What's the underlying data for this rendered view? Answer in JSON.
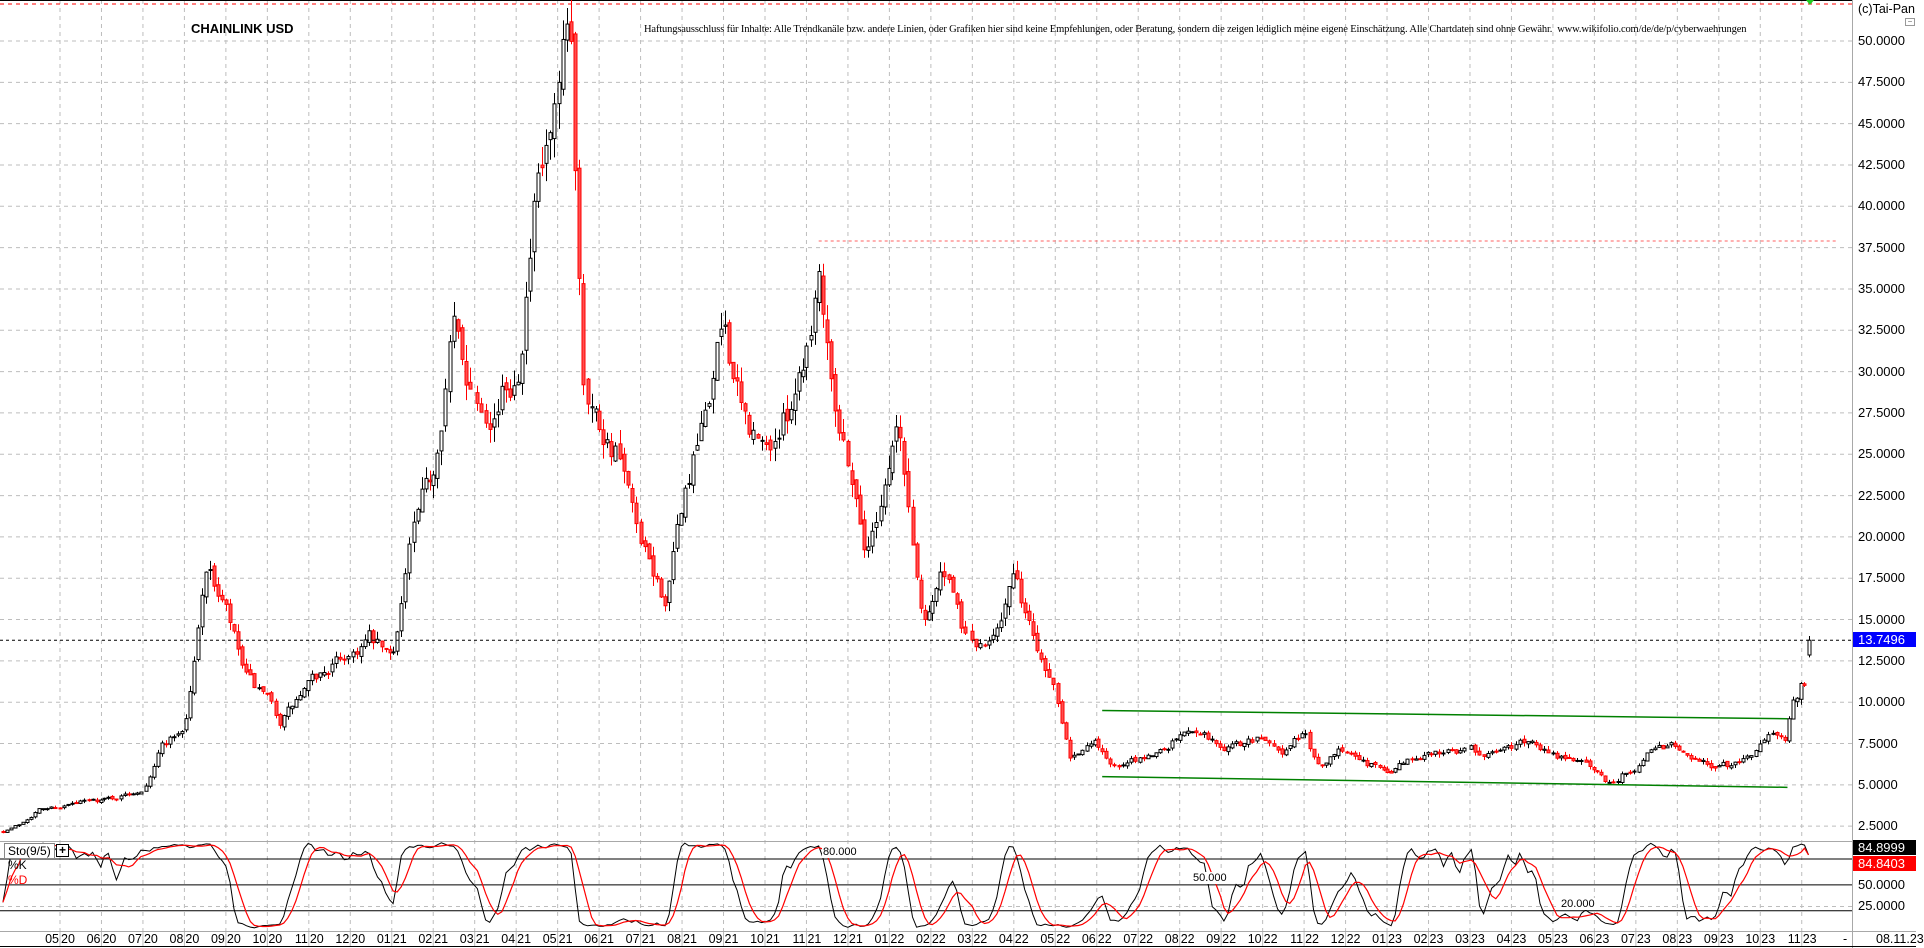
{
  "header": {
    "title": "CHAINLINK USD",
    "disclaimer": "Haftungsausschluss für Inhalte: Alle Trendkanäle bzw. andere Linien, oder Grafiken hier sind keine Empfehlungen, oder Beratung, sondern die zeigen lediglich meine eigene Einschätzung. Alle Chartdaten sind ohne Gewähr.  www.wikifolio.com/de/de/p/cyberwaehrungen",
    "copyright": "(c)Tai-Pan",
    "minimize_icon": "minus-box-icon"
  },
  "footer": {
    "date": "08.11.23",
    "separator": "-"
  },
  "colors": {
    "up": "#000000",
    "down": "#ff0000",
    "trendline": "#008000",
    "resistance": "#ff6060",
    "last_price_bg": "#0000ff",
    "k_line": "#000000",
    "d_line": "#ff0000"
  },
  "chart_data": [
    {
      "type": "candlestick",
      "title": "CHAINLINK USD",
      "ylim": [
        0.9,
        53.4
      ],
      "y_ticks": [
        "2.5000",
        "5.0000",
        "7.5000",
        "10.0000",
        "12.5000",
        "15.0000",
        "17.5000",
        "20.0000",
        "22.5000",
        "25.0000",
        "27.5000",
        "30.0000",
        "32.5000",
        "35.0000",
        "37.5000",
        "40.0000",
        "42.5000",
        "45.0000",
        "47.5000",
        "50.0000"
      ],
      "y_tick_values": [
        2.5,
        5,
        7.5,
        10,
        12.5,
        15,
        17.5,
        20,
        22.5,
        25,
        27.5,
        30,
        32.5,
        35,
        37.5,
        40,
        42.5,
        45,
        47.5,
        50
      ],
      "x_ticks": [
        [
          "05",
          "20"
        ],
        [
          "06",
          "20"
        ],
        [
          "07",
          "20"
        ],
        [
          "08",
          "20"
        ],
        [
          "09",
          "20"
        ],
        [
          "10",
          "20"
        ],
        [
          "11",
          "20"
        ],
        [
          "12",
          "20"
        ],
        [
          "01",
          "21"
        ],
        [
          "02",
          "21"
        ],
        [
          "03",
          "21"
        ],
        [
          "04",
          "21"
        ],
        [
          "05",
          "21"
        ],
        [
          "06",
          "21"
        ],
        [
          "07",
          "21"
        ],
        [
          "08",
          "21"
        ],
        [
          "09",
          "21"
        ],
        [
          "10",
          "21"
        ],
        [
          "11",
          "21"
        ],
        [
          "12",
          "21"
        ],
        [
          "01",
          "22"
        ],
        [
          "02",
          "22"
        ],
        [
          "03",
          "22"
        ],
        [
          "04",
          "22"
        ],
        [
          "05",
          "22"
        ],
        [
          "06",
          "22"
        ],
        [
          "07",
          "22"
        ],
        [
          "08",
          "22"
        ],
        [
          "09",
          "22"
        ],
        [
          "10",
          "22"
        ],
        [
          "11",
          "22"
        ],
        [
          "12",
          "22"
        ],
        [
          "01",
          "23"
        ],
        [
          "02",
          "23"
        ],
        [
          "03",
          "23"
        ],
        [
          "04",
          "23"
        ],
        [
          "05",
          "23"
        ],
        [
          "06",
          "23"
        ],
        [
          "07",
          "23"
        ],
        [
          "08",
          "23"
        ],
        [
          "09",
          "23"
        ],
        [
          "10",
          "23"
        ],
        [
          "11",
          "23"
        ]
      ],
      "grid": true,
      "last_price": "13.7496",
      "last_price_value": 13.7496,
      "closes": [
        [
          "2020-03-20",
          2.2
        ],
        [
          "2020-04-01",
          2.6
        ],
        [
          "2020-04-15",
          3.5
        ],
        [
          "2020-05-01",
          3.7
        ],
        [
          "2020-05-15",
          3.9
        ],
        [
          "2020-06-01",
          4.1
        ],
        [
          "2020-06-15",
          4.3
        ],
        [
          "2020-07-01",
          4.8
        ],
        [
          "2020-07-15",
          7.5
        ],
        [
          "2020-08-01",
          8.5
        ],
        [
          "2020-08-10",
          13.5
        ],
        [
          "2020-08-16",
          18.5
        ],
        [
          "2020-09-01",
          15.5
        ],
        [
          "2020-09-15",
          11.5
        ],
        [
          "2020-10-01",
          10
        ],
        [
          "2020-10-10",
          8.8
        ],
        [
          "2020-11-01",
          11
        ],
        [
          "2020-11-15",
          12
        ],
        [
          "2020-12-01",
          13
        ],
        [
          "2020-12-15",
          13.8
        ],
        [
          "2021-01-01",
          12.5
        ],
        [
          "2021-01-15",
          20
        ],
        [
          "2021-02-01",
          24
        ],
        [
          "2021-02-15",
          33
        ],
        [
          "2021-03-01",
          29
        ],
        [
          "2021-03-15",
          28
        ],
        [
          "2021-04-01",
          30
        ],
        [
          "2021-04-15",
          40
        ],
        [
          "2021-05-01",
          45
        ],
        [
          "2021-05-10",
          50.5
        ],
        [
          "2021-05-20",
          30
        ],
        [
          "2021-06-01",
          27
        ],
        [
          "2021-06-15",
          25
        ],
        [
          "2021-07-01",
          19
        ],
        [
          "2021-07-20",
          16
        ],
        [
          "2021-08-01",
          22
        ],
        [
          "2021-08-15",
          26
        ],
        [
          "2021-09-01",
          33
        ],
        [
          "2021-09-15",
          27
        ],
        [
          "2021-10-01",
          25
        ],
        [
          "2021-10-15",
          27
        ],
        [
          "2021-11-01",
          32
        ],
        [
          "2021-11-10",
          36.5
        ],
        [
          "2021-11-25",
          27
        ],
        [
          "2021-12-01",
          25
        ],
        [
          "2021-12-15",
          19
        ],
        [
          "2022-01-01",
          25
        ],
        [
          "2022-01-07",
          27
        ],
        [
          "2022-01-25",
          15
        ],
        [
          "2022-02-10",
          18
        ],
        [
          "2022-02-25",
          14
        ],
        [
          "2022-03-10",
          13
        ],
        [
          "2022-03-31",
          17.5
        ],
        [
          "2022-04-15",
          14
        ],
        [
          "2022-05-01",
          11
        ],
        [
          "2022-05-12",
          7
        ],
        [
          "2022-05-31",
          7.5
        ],
        [
          "2022-06-15",
          6
        ],
        [
          "2022-07-01",
          6.5
        ],
        [
          "2022-07-15",
          7
        ],
        [
          "2022-08-01",
          8
        ],
        [
          "2022-08-15",
          8.5
        ],
        [
          "2022-09-01",
          7.2
        ],
        [
          "2022-09-15",
          7.5
        ],
        [
          "2022-10-01",
          7.8
        ],
        [
          "2022-10-15",
          7
        ],
        [
          "2022-11-01",
          8.2
        ],
        [
          "2022-11-10",
          6
        ],
        [
          "2022-12-01",
          7.3
        ],
        [
          "2022-12-15",
          6.5
        ],
        [
          "2023-01-01",
          5.7
        ],
        [
          "2023-01-15",
          6.5
        ],
        [
          "2023-02-01",
          7
        ],
        [
          "2023-02-15",
          7.2
        ],
        [
          "2023-03-01",
          7.2
        ],
        [
          "2023-03-15",
          6.8
        ],
        [
          "2023-04-01",
          7.3
        ],
        [
          "2023-04-15",
          7.8
        ],
        [
          "2023-05-01",
          6.8
        ],
        [
          "2023-05-15",
          6.5
        ],
        [
          "2023-06-01",
          6
        ],
        [
          "2023-06-12",
          5.1
        ],
        [
          "2023-07-01",
          6.2
        ],
        [
          "2023-07-15",
          7.5
        ],
        [
          "2023-08-01",
          7.4
        ],
        [
          "2023-08-15",
          6.5
        ],
        [
          "2023-09-01",
          6.1
        ],
        [
          "2023-09-15",
          6.2
        ],
        [
          "2023-10-01",
          7.5
        ],
        [
          "2023-10-08",
          7.9
        ],
        [
          "2023-10-20",
          7.4
        ],
        [
          "2023-10-23",
          10
        ],
        [
          "2023-11-01",
          11.2
        ],
        [
          "2023-11-05",
          11
        ],
        [
          "2023-11-08",
          13.7496
        ]
      ],
      "trendlines": [
        {
          "from": [
            "2022-06-05",
            9.5
          ],
          "to": [
            "2023-10-21",
            9.0
          ]
        },
        {
          "from": [
            "2022-06-05",
            5.5
          ],
          "to": [
            "2023-10-21",
            4.85
          ]
        }
      ],
      "resistance": {
        "from": "2021-11-10",
        "value": 37.9
      }
    },
    {
      "type": "line",
      "indicator": "Sto(9/5)",
      "series": [
        {
          "name": "%K",
          "last": "84.8999"
        },
        {
          "name": "%D",
          "last": "84.8403"
        }
      ],
      "levels": [
        80,
        50,
        20
      ],
      "level_labels": [
        "80.000",
        "50.000",
        "20.000"
      ],
      "y_ticks": [
        "50.0000",
        "25.0000"
      ],
      "y_tick_values": [
        50,
        25
      ],
      "ylim": [
        0,
        100
      ]
    }
  ]
}
